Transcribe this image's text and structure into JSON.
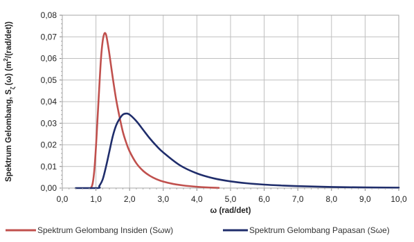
{
  "chart_data": {
    "type": "line",
    "xlabel": "ω (rad/det)",
    "ylabel_main": "Spektrum Gelombang, S",
    "ylabel_sub": "ζ",
    "ylabel_rest": "(ω) (m",
    "ylabel_sup": "2",
    "ylabel_end": "/(rad/det))",
    "xlim": [
      0,
      10
    ],
    "ylim": [
      0,
      0.08
    ],
    "x_ticks": [
      "0,0",
      "1,0",
      "2,0",
      "3,0",
      "4,0",
      "5,0",
      "6,0",
      "7,0",
      "8,0",
      "9,0",
      "10,0"
    ],
    "y_ticks": [
      "0,00",
      "0,01",
      "0,02",
      "0,03",
      "0,04",
      "0,05",
      "0,06",
      "0,07",
      "0,08"
    ],
    "grid": true,
    "legend_position": "bottom",
    "series": [
      {
        "name": "Spektrum Gelombang Insiden  (Sωw)",
        "color": "#c0504d",
        "x": [
          0.85,
          0.9,
          0.95,
          1.0,
          1.05,
          1.1,
          1.15,
          1.2,
          1.25,
          1.3,
          1.35,
          1.4,
          1.5,
          1.6,
          1.7,
          1.8,
          1.9,
          2.0,
          2.2,
          2.4,
          2.6,
          2.8,
          3.0,
          3.3,
          3.6,
          4.0,
          4.3,
          4.65
        ],
        "y": [
          0.0,
          0.002,
          0.008,
          0.019,
          0.033,
          0.047,
          0.06,
          0.068,
          0.0715,
          0.071,
          0.067,
          0.062,
          0.051,
          0.041,
          0.033,
          0.026,
          0.021,
          0.017,
          0.0115,
          0.008,
          0.0057,
          0.0041,
          0.003,
          0.0019,
          0.0012,
          0.0006,
          0.0003,
          0.0001
        ]
      },
      {
        "name": "Spektrum Gelombang Papasan (Sωe)",
        "color": "#1f2d6b",
        "x": [
          0.4,
          1.05,
          1.1,
          1.2,
          1.3,
          1.4,
          1.5,
          1.6,
          1.7,
          1.8,
          1.9,
          2.0,
          2.2,
          2.4,
          2.6,
          2.8,
          3.0,
          3.5,
          4.0,
          4.5,
          5.0,
          5.5,
          6.0,
          6.5,
          7.0,
          8.0,
          9.0,
          10.0
        ],
        "y": [
          0.0,
          0.0,
          0.001,
          0.004,
          0.01,
          0.017,
          0.024,
          0.029,
          0.032,
          0.034,
          0.0345,
          0.034,
          0.031,
          0.027,
          0.023,
          0.0195,
          0.0165,
          0.0105,
          0.0068,
          0.0045,
          0.0031,
          0.0022,
          0.0016,
          0.0012,
          0.0009,
          0.0005,
          0.0003,
          0.0002
        ]
      }
    ]
  }
}
